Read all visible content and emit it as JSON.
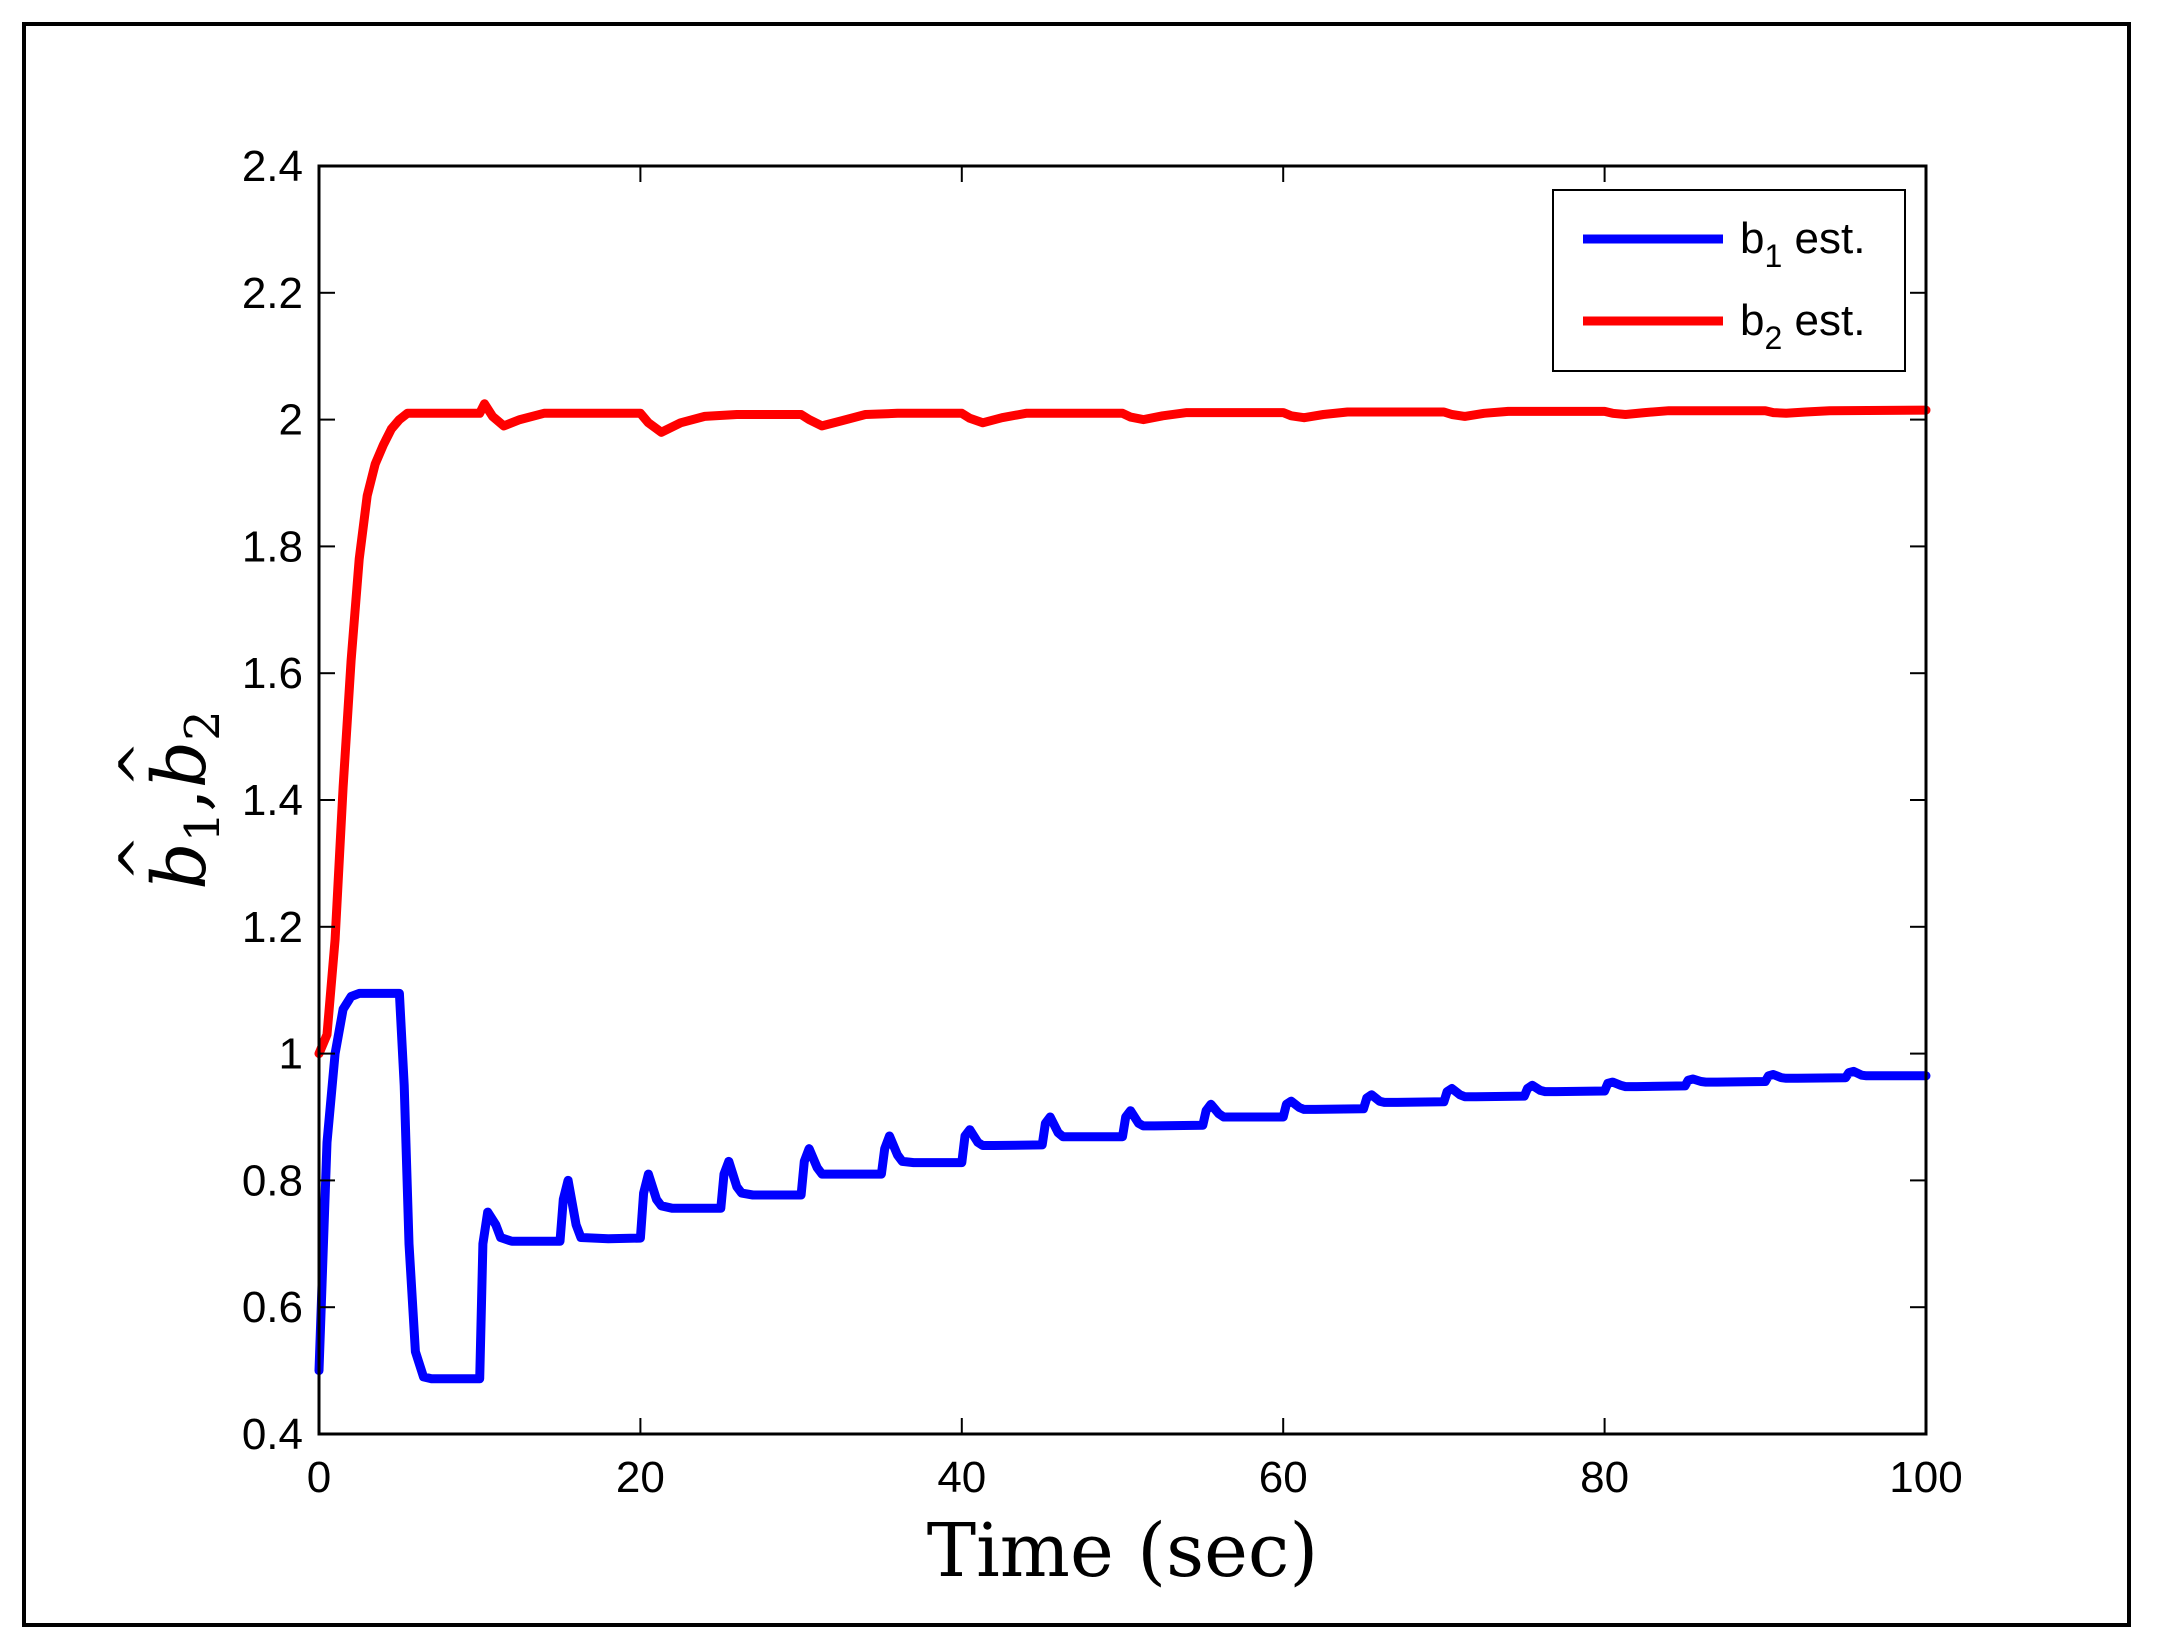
{
  "chart_data": {
    "type": "line",
    "title": "",
    "xlabel": "Time (sec)",
    "ylabel_parts": {
      "base1": "b",
      "sub1": "1",
      "sep": ",",
      "base2": "b",
      "sub2": "2",
      "hat": "^"
    },
    "xlim": [
      0,
      100
    ],
    "ylim": [
      0.4,
      2.4
    ],
    "xticks": [
      0,
      20,
      40,
      60,
      80,
      100
    ],
    "yticks": [
      0.4,
      0.6,
      0.8,
      1,
      1.2,
      1.4,
      1.6,
      1.8,
      2,
      2.2,
      2.4
    ],
    "grid": false,
    "legend_position": "top-right",
    "series": [
      {
        "name": "b1 est.",
        "legend_base": "b",
        "legend_sub": "1",
        "legend_suffix": " est.",
        "color": "#0000ff",
        "x": [
          0,
          0.5,
          1,
          1.5,
          2,
          2.5,
          3,
          5,
          5.3,
          5.6,
          6,
          6.5,
          7,
          8,
          10,
          10.2,
          10.5,
          11,
          11.3,
          12,
          15,
          15.2,
          15.5,
          16,
          16.3,
          18,
          20,
          20.2,
          20.5,
          21,
          21.3,
          22,
          25,
          25.2,
          25.5,
          26,
          26.3,
          27,
          30,
          30.2,
          30.5,
          31,
          31.3,
          32,
          35,
          35.2,
          35.5,
          36,
          36.3,
          37,
          40,
          40.2,
          40.5,
          41,
          41.3,
          42,
          45,
          45.2,
          45.5,
          46,
          46.3,
          47,
          50,
          50.2,
          50.5,
          51,
          51.3,
          52,
          55,
          55.2,
          55.5,
          56,
          56.3,
          57,
          60,
          60.2,
          60.5,
          61,
          61.3,
          62,
          65,
          65.2,
          65.5,
          66,
          66.3,
          67,
          70,
          70.2,
          70.5,
          71,
          71.3,
          72,
          75,
          75.2,
          75.5,
          76,
          76.3,
          77,
          80,
          80.2,
          80.5,
          81,
          81.3,
          82,
          85,
          85.2,
          85.5,
          86,
          86.3,
          87,
          90,
          90.2,
          90.5,
          91,
          91.3,
          92,
          95,
          95.2,
          95.5,
          96,
          96.3,
          97,
          100
        ],
        "y": [
          0.5,
          0.86,
          1.0,
          1.07,
          1.09,
          1.095,
          1.095,
          1.095,
          0.95,
          0.7,
          0.53,
          0.49,
          0.487,
          0.487,
          0.487,
          0.7,
          0.75,
          0.73,
          0.71,
          0.704,
          0.704,
          0.77,
          0.8,
          0.73,
          0.71,
          0.708,
          0.709,
          0.78,
          0.81,
          0.77,
          0.76,
          0.756,
          0.756,
          0.81,
          0.83,
          0.79,
          0.78,
          0.777,
          0.777,
          0.83,
          0.85,
          0.82,
          0.81,
          0.81,
          0.81,
          0.85,
          0.87,
          0.84,
          0.83,
          0.828,
          0.828,
          0.87,
          0.88,
          0.86,
          0.855,
          0.855,
          0.856,
          0.89,
          0.9,
          0.875,
          0.869,
          0.869,
          0.869,
          0.9,
          0.91,
          0.89,
          0.886,
          0.886,
          0.887,
          0.91,
          0.92,
          0.905,
          0.9,
          0.9,
          0.9,
          0.92,
          0.925,
          0.915,
          0.912,
          0.912,
          0.913,
          0.93,
          0.935,
          0.925,
          0.923,
          0.923,
          0.924,
          0.94,
          0.945,
          0.935,
          0.932,
          0.932,
          0.933,
          0.945,
          0.95,
          0.942,
          0.94,
          0.94,
          0.941,
          0.953,
          0.955,
          0.95,
          0.948,
          0.948,
          0.949,
          0.958,
          0.96,
          0.956,
          0.955,
          0.955,
          0.956,
          0.965,
          0.967,
          0.962,
          0.961,
          0.961,
          0.962,
          0.97,
          0.972,
          0.966,
          0.965,
          0.965,
          0.965
        ]
      },
      {
        "name": "b2 est.",
        "legend_base": "b",
        "legend_sub": "2",
        "legend_suffix": " est.",
        "color": "#ff0000",
        "x": [
          0,
          0.5,
          1,
          1.5,
          2,
          2.5,
          3,
          3.5,
          4,
          4.5,
          5,
          5.5,
          6,
          10,
          10.3,
          10.8,
          11.5,
          12.5,
          14,
          20,
          20.5,
          21.3,
          22.5,
          24,
          26,
          30,
          30.5,
          31.3,
          32.5,
          34,
          36,
          40,
          40.5,
          41.3,
          42.5,
          44,
          50,
          50.5,
          51.3,
          52.5,
          54,
          60,
          60.5,
          61.3,
          62.5,
          64,
          70,
          70.5,
          71.3,
          72.5,
          74,
          80,
          80.5,
          81.3,
          82.5,
          84,
          90,
          90.5,
          91.3,
          92.5,
          94,
          100
        ],
        "y": [
          1.0,
          1.03,
          1.18,
          1.42,
          1.62,
          1.78,
          1.88,
          1.93,
          1.96,
          1.985,
          2.0,
          2.01,
          2.01,
          2.01,
          2.025,
          2.005,
          1.99,
          2.0,
          2.01,
          2.01,
          1.995,
          1.98,
          1.995,
          2.005,
          2.008,
          2.008,
          2.0,
          1.99,
          1.998,
          2.008,
          2.01,
          2.01,
          2.002,
          1.995,
          2.003,
          2.01,
          2.01,
          2.004,
          2.0,
          2.006,
          2.011,
          2.011,
          2.006,
          2.003,
          2.008,
          2.012,
          2.012,
          2.008,
          2.005,
          2.01,
          2.013,
          2.013,
          2.01,
          2.008,
          2.011,
          2.014,
          2.014,
          2.011,
          2.01,
          2.012,
          2.014,
          2.015
        ]
      }
    ]
  }
}
